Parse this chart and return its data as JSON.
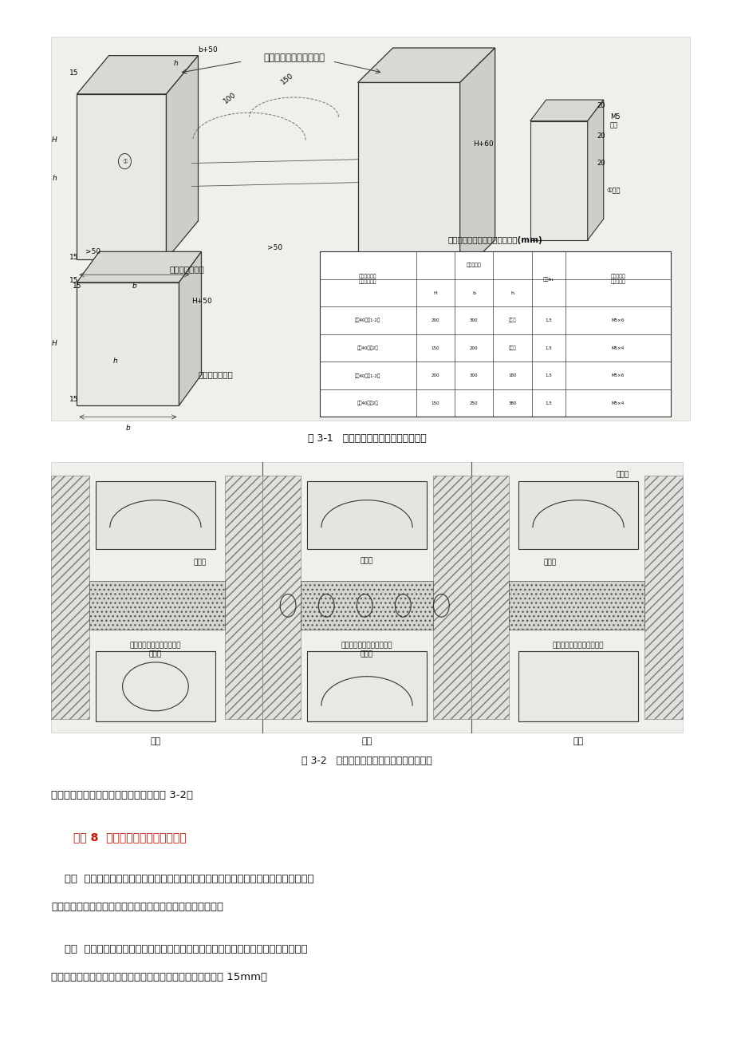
{
  "bg_color": "#ffffff",
  "fig_width": 9.2,
  "fig_height": 13.02,
  "dpi": 100,
  "figure1_caption": "图 3-1   建筑物伸缩沉降缝处接线箱做法",
  "figure2_caption": "图 3-2   暗配管线过建筑物伸缩沉降缝时做法",
  "intro_text": "暗配管线过建筑物伸缩沉降缝时做法见图 3-2。",
  "section_title": "禁忌 8  暗敷管的保护层厚度不够。",
  "para1": "    后果  暗敷管当保护层过薄时，电线管有可能露出抹灰层或者因锈蚀造成的抹灰面脱落，",
  "para1b": "或在装修时容易把管子破坏，造成安全隐患，影响工程质量。",
  "para2": "    措施  当线路暗配时，电线保护管宜沿最近的路线敷设，并应减少弯曲，埋入建筑物、",
  "para2b": "构筑物内的电线保护管与建筑物、构筑物表面的距离不应小于 15mm。",
  "table_title": "电线管与接线箱配用规格尺寸表(mm)",
  "table_rows": [
    [
      "一式40以下2支",
      "150",
      "250",
      "380",
      "1.5",
      "M5×4"
    ],
    [
      "一式40以下1-2支",
      "200",
      "300",
      "180",
      "1.5",
      "M5×6"
    ],
    [
      "二式40以下2支",
      "150",
      "200",
      "同墙厚",
      "1.5",
      "M5×4"
    ],
    [
      "二式40以下1-2支",
      "200",
      "300",
      "同墙厚",
      "1.5",
      "M5×6"
    ]
  ]
}
